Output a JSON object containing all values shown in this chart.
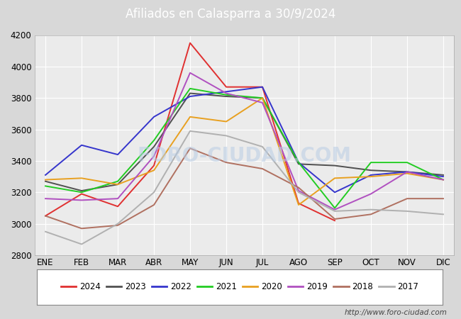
{
  "title": "Afiliados en Calasparra a 30/9/2024",
  "title_bg_color": "#4a8fd4",
  "title_text_color": "white",
  "ylim": [
    2800,
    4200
  ],
  "yticks": [
    2800,
    3000,
    3200,
    3400,
    3600,
    3800,
    4000,
    4200
  ],
  "months": [
    "ENE",
    "FEB",
    "MAR",
    "ABR",
    "MAY",
    "JUN",
    "JUL",
    "AGO",
    "SEP",
    "OCT",
    "NOV",
    "DIC"
  ],
  "watermark": "FORO-CIUDAD.COM",
  "url": "http://www.foro-ciudad.com",
  "series": {
    "2024": {
      "color": "#e03030",
      "data": [
        3050,
        3190,
        3110,
        3370,
        4150,
        3870,
        3870,
        3130,
        3020,
        null,
        null,
        null
      ]
    },
    "2023": {
      "color": "#505050",
      "data": [
        3270,
        3210,
        3250,
        3490,
        3830,
        3810,
        3800,
        3380,
        3370,
        3340,
        3330,
        3310
      ]
    },
    "2022": {
      "color": "#3535cc",
      "data": [
        3310,
        3500,
        3440,
        3680,
        3810,
        3840,
        3870,
        3390,
        3200,
        3310,
        3330,
        3300
      ]
    },
    "2021": {
      "color": "#22cc22",
      "data": [
        3240,
        3200,
        3270,
        3530,
        3860,
        3820,
        3800,
        3390,
        3100,
        3390,
        3390,
        3280
      ]
    },
    "2020": {
      "color": "#e8a020",
      "data": [
        3280,
        3290,
        3250,
        3340,
        3680,
        3650,
        3800,
        3120,
        3290,
        3300,
        3320,
        3280
      ]
    },
    "2019": {
      "color": "#b050c0",
      "data": [
        3160,
        3150,
        3160,
        3430,
        3960,
        3830,
        3770,
        3210,
        3090,
        3190,
        3330,
        3280
      ]
    },
    "2018": {
      "color": "#b07060",
      "data": [
        3050,
        2970,
        2990,
        3120,
        3480,
        3390,
        3350,
        3230,
        3030,
        3060,
        3160,
        3160
      ]
    },
    "2017": {
      "color": "#b0b0b0",
      "data": [
        2950,
        2870,
        3000,
        3200,
        3590,
        3560,
        3490,
        3200,
        3080,
        3090,
        3080,
        3060
      ]
    }
  },
  "legend_order": [
    "2024",
    "2023",
    "2022",
    "2021",
    "2020",
    "2019",
    "2018",
    "2017"
  ],
  "bg_color": "#d8d8d8",
  "plot_bg_color": "#ebebeb",
  "grid_color": "white",
  "font_size": 8.5,
  "title_fontsize": 12
}
